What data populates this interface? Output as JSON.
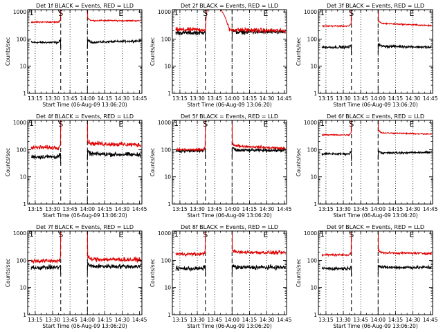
{
  "chart_data": {
    "type": "line",
    "ylabel": "Counts/sec",
    "yscale": "log",
    "ylim": [
      1,
      1200
    ],
    "ytick_values": [
      1,
      10,
      100,
      1000
    ],
    "ytick_labels": [
      "1",
      "10",
      "100",
      "1000"
    ],
    "xlim_minutes": [
      2.5,
      101
    ],
    "xtick_minutes": [
      9,
      24,
      39,
      54,
      69,
      84,
      99
    ],
    "xtick_labels": [
      "13:15",
      "13:30",
      "13:45",
      "14:00",
      "14:15",
      "14:30",
      "14:45"
    ],
    "dotted_lines_minutes": [
      9,
      24,
      39,
      54,
      69,
      84
    ],
    "dashed_lines_minutes": [
      31,
      54
    ],
    "markers": [
      {
        "label": "S",
        "minute": 31
      },
      {
        "label": "E",
        "minute": 83
      }
    ],
    "panels": [
      {
        "title": "Det 1f BLACK = Events, RED = LLD",
        "xlabel": "Start Time (06-Aug-09 13:06:20)",
        "tick_prefix": "1",
        "series": [
          {
            "name": "Events",
            "color": "#000000",
            "pre": 75,
            "post": 75,
            "end": 85,
            "flare": false,
            "noise": 0.05
          },
          {
            "name": "LLD",
            "color": "#e00000",
            "pre": 420,
            "post": 480,
            "end": 470,
            "flare": false,
            "noise": 0.03
          }
        ]
      },
      {
        "title": "Det 2f BLACK = Events, RED = LLD",
        "xlabel": "Start Time (06-Aug-09 13:06:20)",
        "tick_prefix": "1",
        "series": [
          {
            "name": "Events",
            "color": "#000000",
            "pre": 170,
            "post": 180,
            "end": 180,
            "flare": false,
            "noise": 0.1
          },
          {
            "name": "LLD",
            "color": "#e00000",
            "pre": 220,
            "post": 220,
            "end": 200,
            "flare": true,
            "noise": 0.1
          }
        ]
      },
      {
        "title": "Det 3f BLACK = Events, RED = LLD",
        "xlabel": "Start Time (06-Aug-09 13:06:20)",
        "tick_prefix": "1",
        "series": [
          {
            "name": "Events",
            "color": "#000000",
            "pre": 50,
            "post": 55,
            "end": 50,
            "flare": false,
            "noise": 0.06
          },
          {
            "name": "LLD",
            "color": "#e00000",
            "pre": 300,
            "post": 380,
            "end": 310,
            "flare": false,
            "noise": 0.03
          }
        ]
      },
      {
        "title": "Det 4f BLACK = Events, RED = LLD",
        "xlabel": "Start Time (06-Aug-09 13:06:20)",
        "tick_prefix": "1",
        "series": [
          {
            "name": "Events",
            "color": "#000000",
            "pre": 55,
            "post": 70,
            "end": 65,
            "flare": false,
            "noise": 0.1
          },
          {
            "name": "LLD",
            "color": "#e00000",
            "pre": 120,
            "post": 170,
            "end": 150,
            "flare": false,
            "noise": 0.1
          }
        ]
      },
      {
        "title": "Det 5f BLACK = Events, RED = LLD",
        "xlabel": "Start Time (06-Aug-09 13:06:20)",
        "tick_prefix": "1",
        "series": [
          {
            "name": "Events",
            "color": "#000000",
            "pre": 90,
            "post": 95,
            "end": 95,
            "flare": false,
            "noise": 0.08
          },
          {
            "name": "LLD",
            "color": "#e00000",
            "pre": 100,
            "post": 140,
            "end": 110,
            "flare": false,
            "noise": 0.06
          }
        ]
      },
      {
        "title": "Det 6f BLACK = Events, RED = LLD",
        "xlabel": "Start Time (06-Aug-09 13:06:20)",
        "tick_prefix": "1",
        "series": [
          {
            "name": "Events",
            "color": "#000000",
            "pre": 70,
            "post": 75,
            "end": 80,
            "flare": false,
            "noise": 0.05
          },
          {
            "name": "LLD",
            "color": "#e00000",
            "pre": 350,
            "post": 420,
            "end": 370,
            "flare": false,
            "noise": 0.03
          }
        ]
      },
      {
        "title": "Det 7f BLACK = Events, RED = LLD",
        "xlabel": "Start Time (06-Aug-09 13:06:20)",
        "tick_prefix": "1",
        "series": [
          {
            "name": "Events",
            "color": "#000000",
            "pre": 55,
            "post": 60,
            "end": 60,
            "flare": false,
            "noise": 0.1
          },
          {
            "name": "LLD",
            "color": "#e00000",
            "pre": 95,
            "post": 110,
            "end": 105,
            "flare": false,
            "noise": 0.1
          }
        ]
      },
      {
        "title": "Det 8f BLACK = Events, RED = LLD",
        "xlabel": "Start Time (06-Aug-09 13:06:20)",
        "tick_prefix": "1",
        "series": [
          {
            "name": "Events",
            "color": "#000000",
            "pre": 50,
            "post": 55,
            "end": 55,
            "flare": false,
            "noise": 0.1
          },
          {
            "name": "LLD",
            "color": "#e00000",
            "pre": 170,
            "post": 200,
            "end": 190,
            "flare": false,
            "noise": 0.08
          }
        ]
      },
      {
        "title": "Det 9f BLACK = Events, RED = LLD",
        "xlabel": "Start Time (06-Aug-09 13:06:20)",
        "tick_prefix": "1",
        "series": [
          {
            "name": "Events",
            "color": "#000000",
            "pre": 50,
            "post": 55,
            "end": 55,
            "flare": false,
            "noise": 0.08
          },
          {
            "name": "LLD",
            "color": "#e00000",
            "pre": 160,
            "post": 190,
            "end": 180,
            "flare": false,
            "noise": 0.05
          }
        ]
      }
    ]
  }
}
